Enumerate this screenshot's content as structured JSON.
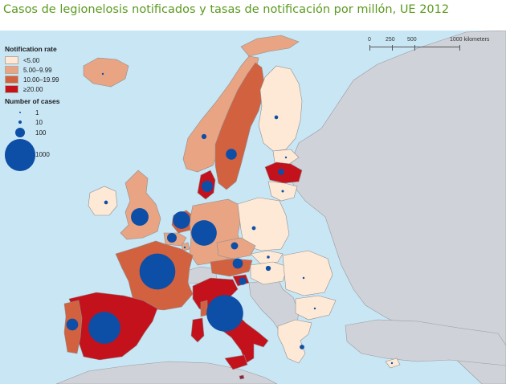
{
  "title": "Casos de legionelosis notificados y tasas de notificación por millón, UE 2012",
  "legend": {
    "rate_heading": "Notification rate",
    "rate_classes": [
      {
        "label": "<5.00",
        "color": "#fde9d6"
      },
      {
        "label": "5.00–9.99",
        "color": "#e8a483"
      },
      {
        "label": "10.00–19.99",
        "color": "#d2613f"
      },
      {
        "label": "≥20.00",
        "color": "#c4121c"
      }
    ],
    "cases_heading": "Number of cases",
    "case_classes": [
      {
        "label": "1",
        "value": 1
      },
      {
        "label": "10",
        "value": 10
      },
      {
        "label": "100",
        "value": 100
      },
      {
        "label": "1000",
        "value": 1000
      }
    ]
  },
  "scalebar": {
    "labels": [
      "0",
      "250",
      "500",
      "1000 kilometers"
    ]
  },
  "colors": {
    "sea": "#c9e6f5",
    "non_eu_land": "#cfd3d9",
    "border": "#8f8f8f",
    "bubble": "#0d4ea6"
  },
  "map_data": {
    "countries": [
      {
        "name": "Iceland",
        "rate_class": "5.00–9.99",
        "cases": 2
      },
      {
        "name": "Ireland",
        "rate_class": "<5.00",
        "cases": 14
      },
      {
        "name": "United Kingdom",
        "rate_class": "5.00–9.99",
        "cases": 312
      },
      {
        "name": "Norway",
        "rate_class": "5.00–9.99",
        "cases": 25
      },
      {
        "name": "Sweden",
        "rate_class": "10.00–19.99",
        "cases": 120
      },
      {
        "name": "Finland",
        "rate_class": "<5.00",
        "cases": 14
      },
      {
        "name": "Estonia",
        "rate_class": "<5.00",
        "cases": 3
      },
      {
        "name": "Latvia",
        "rate_class": "≥20.00",
        "cases": 38
      },
      {
        "name": "Lithuania",
        "rate_class": "<5.00",
        "cases": 6
      },
      {
        "name": "Denmark",
        "rate_class": "≥20.00",
        "cases": 130
      },
      {
        "name": "Netherlands",
        "rate_class": "10.00–19.99",
        "cases": 305
      },
      {
        "name": "Belgium",
        "rate_class": "5.00–9.99",
        "cases": 93
      },
      {
        "name": "Luxembourg",
        "rate_class": "5.00–9.99",
        "cases": 3
      },
      {
        "name": "Germany",
        "rate_class": "5.00–9.99",
        "cases": 654
      },
      {
        "name": "Poland",
        "rate_class": "<5.00",
        "cases": 15
      },
      {
        "name": "Czech Republic",
        "rate_class": "5.00–9.99",
        "cases": 52
      },
      {
        "name": "Slovakia",
        "rate_class": "<5.00",
        "cases": 8
      },
      {
        "name": "Austria",
        "rate_class": "10.00–19.99",
        "cases": 105
      },
      {
        "name": "Hungary",
        "rate_class": "<5.00",
        "cases": 26
      },
      {
        "name": "Slovenia",
        "rate_class": "≥20.00",
        "cases": 56
      },
      {
        "name": "Romania",
        "rate_class": "<5.00",
        "cases": 4
      },
      {
        "name": "Bulgaria",
        "rate_class": "<5.00",
        "cases": 1
      },
      {
        "name": "Greece",
        "rate_class": "<5.00",
        "cases": 22
      },
      {
        "name": "Cyprus",
        "rate_class": "<5.00",
        "cases": 1
      },
      {
        "name": "France",
        "rate_class": "10.00–19.99",
        "cases": 1298
      },
      {
        "name": "Spain",
        "rate_class": "≥20.00",
        "cases": 1028
      },
      {
        "name": "Portugal",
        "rate_class": "10.00–19.99",
        "cases": 140
      },
      {
        "name": "Italy",
        "rate_class": "≥20.00",
        "cases": 1352
      },
      {
        "name": "Malta",
        "rate_class": "≥20.00",
        "cases": 3
      }
    ]
  }
}
